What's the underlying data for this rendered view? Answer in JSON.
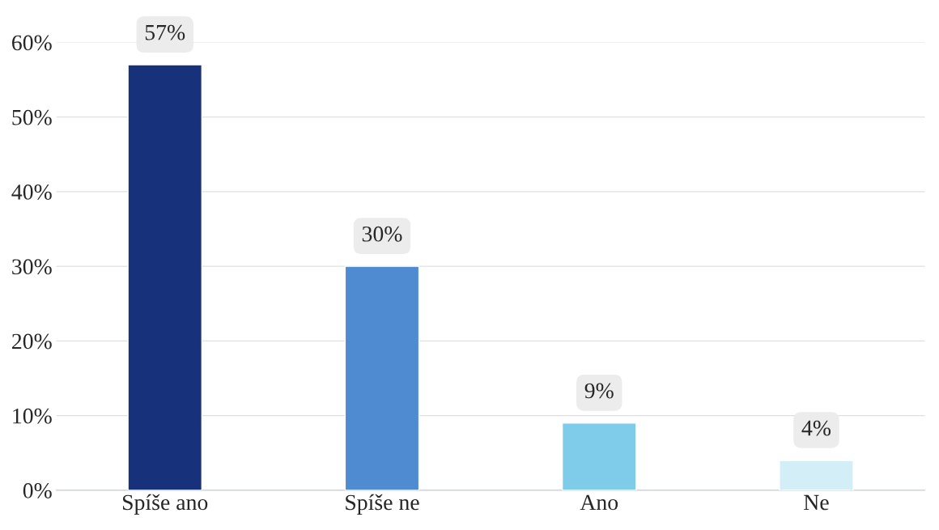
{
  "chart_data": {
    "type": "bar",
    "categories": [
      "Spíše ano",
      "Spíše ne",
      "Ano",
      "Ne"
    ],
    "values": [
      57,
      30,
      9,
      4
    ],
    "colors": [
      "#17317a",
      "#4f8bd0",
      "#7ecbea",
      "#d4eef8"
    ],
    "value_labels": [
      "57%",
      "30%",
      "9%",
      "4%"
    ],
    "ylim": [
      0,
      60
    ],
    "yticks": [
      {
        "value": 0,
        "label": "0%"
      },
      {
        "value": 10,
        "label": "10%"
      },
      {
        "value": 20,
        "label": "20%"
      },
      {
        "value": 30,
        "label": "30%"
      },
      {
        "value": 40,
        "label": "40%"
      },
      {
        "value": 50,
        "label": "50%"
      },
      {
        "value": 60,
        "label": "60%"
      }
    ],
    "grid": "y",
    "legend": false
  }
}
